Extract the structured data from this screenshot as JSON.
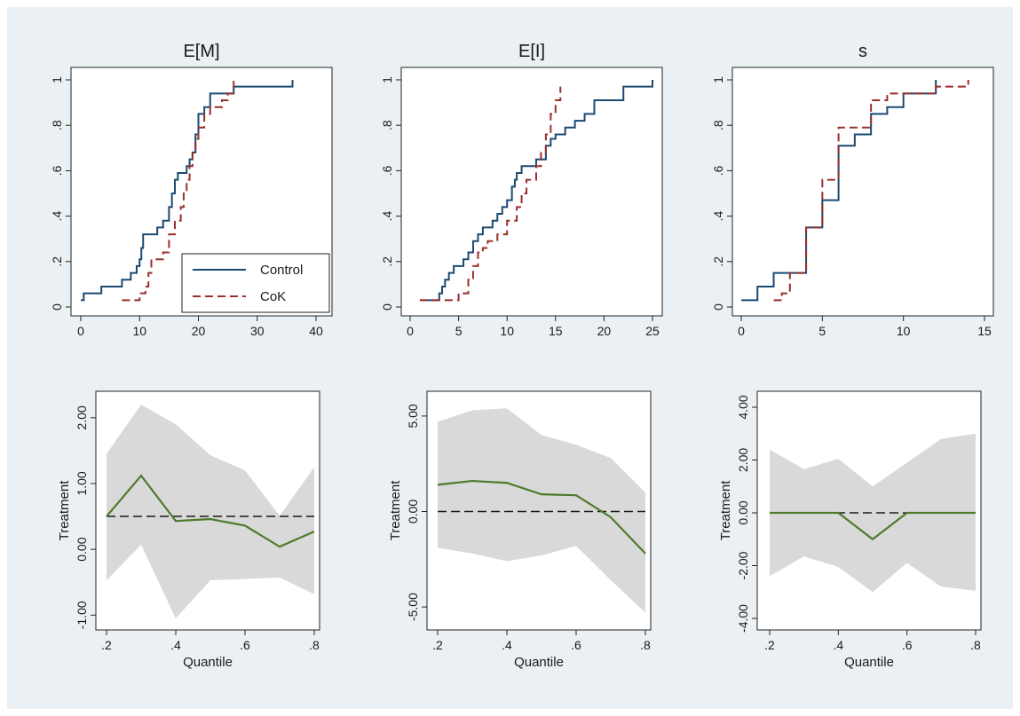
{
  "colors": {
    "outer_background": "#eaf0f3",
    "plot_background": "#ffffff",
    "control_line": "#1b4a72",
    "cok_line": "#9a2f2b",
    "treatment_line": "#4f7a2b",
    "band_fill": "#d9d9d9",
    "reference_line": "#1a1a1a"
  },
  "chart_data": [
    {
      "type": "line",
      "subtype": "step-cdf",
      "title": "E[M]",
      "xlim": [
        0,
        40
      ],
      "ylim": [
        0,
        1
      ],
      "xticks": [
        0,
        10,
        20,
        30,
        40
      ],
      "xtick_labels": [
        "0",
        "10",
        "20",
        "30",
        "40"
      ],
      "yticks": [
        0,
        0.2,
        0.4,
        0.6,
        0.8,
        1
      ],
      "ytick_labels": [
        "0",
        ".2",
        ".4",
        ".6",
        ".8",
        "1"
      ],
      "legend": {
        "placement": "bottom-right",
        "entries": [
          "Control",
          "CoK"
        ]
      },
      "series": [
        {
          "name": "Control",
          "style": "solid",
          "x": [
            0,
            0.5,
            3.5,
            7,
            8.5,
            9.5,
            10,
            10.3,
            10.6,
            11,
            13,
            14,
            15,
            15.5,
            16,
            16.5,
            18,
            18.5,
            19,
            19.5,
            20,
            21,
            22,
            23,
            26,
            28,
            36
          ],
          "y": [
            0.03,
            0.06,
            0.09,
            0.12,
            0.15,
            0.18,
            0.21,
            0.26,
            0.32,
            0.32,
            0.35,
            0.38,
            0.44,
            0.5,
            0.56,
            0.59,
            0.62,
            0.65,
            0.68,
            0.76,
            0.85,
            0.88,
            0.94,
            0.94,
            0.97,
            0.97,
            1.0
          ]
        },
        {
          "name": "CoK",
          "style": "dashed",
          "x": [
            7,
            10,
            11,
            11.5,
            12,
            14,
            15,
            16,
            17,
            17.5,
            18,
            18.5,
            19,
            19.5,
            20,
            21,
            22,
            24,
            25,
            26
          ],
          "y": [
            0.03,
            0.06,
            0.09,
            0.15,
            0.21,
            0.24,
            0.32,
            0.38,
            0.44,
            0.5,
            0.56,
            0.62,
            0.68,
            0.74,
            0.79,
            0.85,
            0.88,
            0.91,
            0.94,
            1.0
          ]
        }
      ]
    },
    {
      "type": "line",
      "subtype": "step-cdf",
      "title": "E[I]",
      "xlim": [
        0,
        25
      ],
      "ylim": [
        0,
        1
      ],
      "xticks": [
        0,
        5,
        10,
        15,
        20,
        25
      ],
      "xtick_labels": [
        "0",
        "5",
        "10",
        "15",
        "20",
        "25"
      ],
      "yticks": [
        0,
        0.2,
        0.4,
        0.6,
        0.8,
        1
      ],
      "ytick_labels": [
        "0",
        ".2",
        ".4",
        ".6",
        ".8",
        "1"
      ],
      "series": [
        {
          "name": "Control",
          "style": "solid",
          "x": [
            1,
            3,
            3.3,
            3.6,
            4,
            4.5,
            5.5,
            6,
            6.5,
            7,
            7.5,
            8,
            8.5,
            9,
            9.5,
            10,
            10.5,
            10.8,
            11,
            11.5,
            13,
            14,
            14.5,
            15,
            16,
            17,
            18,
            19,
            22,
            25
          ],
          "y": [
            0.03,
            0.06,
            0.09,
            0.12,
            0.15,
            0.18,
            0.21,
            0.24,
            0.29,
            0.32,
            0.35,
            0.35,
            0.38,
            0.41,
            0.44,
            0.47,
            0.53,
            0.56,
            0.59,
            0.62,
            0.65,
            0.71,
            0.74,
            0.76,
            0.79,
            0.82,
            0.85,
            0.91,
            0.97,
            1.0
          ]
        },
        {
          "name": "CoK",
          "style": "dashed",
          "x": [
            1,
            3,
            5,
            6,
            6.5,
            7,
            7.5,
            8,
            9,
            10,
            11,
            11.5,
            12,
            13,
            13.5,
            14,
            14.5,
            15,
            15.5
          ],
          "y": [
            0.03,
            0.03,
            0.06,
            0.12,
            0.18,
            0.24,
            0.26,
            0.29,
            0.32,
            0.38,
            0.44,
            0.5,
            0.56,
            0.62,
            0.68,
            0.76,
            0.85,
            0.91,
            0.97
          ]
        }
      ]
    },
    {
      "type": "line",
      "subtype": "step-cdf",
      "title": "s",
      "xlim": [
        0,
        15
      ],
      "ylim": [
        0,
        1
      ],
      "xticks": [
        0,
        5,
        10,
        15
      ],
      "xtick_labels": [
        "0",
        "5",
        "10",
        "15"
      ],
      "yticks": [
        0,
        0.2,
        0.4,
        0.6,
        0.8,
        1
      ],
      "ytick_labels": [
        "0",
        ".2",
        ".4",
        ".6",
        ".8",
        "1"
      ],
      "series": [
        {
          "name": "Control",
          "style": "solid",
          "x": [
            0,
            1,
            2,
            4,
            5,
            6,
            7,
            8,
            9,
            10,
            11,
            12
          ],
          "y": [
            0.03,
            0.09,
            0.15,
            0.35,
            0.47,
            0.71,
            0.76,
            0.85,
            0.88,
            0.94,
            0.94,
            1.0
          ]
        },
        {
          "name": "CoK",
          "style": "dashed",
          "x": [
            2,
            2.5,
            3,
            4,
            5,
            6,
            7,
            8,
            9,
            10,
            11,
            12,
            13,
            14
          ],
          "y": [
            0.03,
            0.06,
            0.15,
            0.35,
            0.56,
            0.79,
            0.79,
            0.91,
            0.94,
            0.94,
            0.94,
            0.97,
            0.97,
            1.0
          ]
        }
      ]
    },
    {
      "type": "line",
      "subtype": "quantile-treatment-effect",
      "xlabel": "Quantile",
      "ylabel": "Treatment",
      "xlim": [
        0.2,
        0.8
      ],
      "ylim": [
        -1.05,
        2.2
      ],
      "xticks": [
        0.2,
        0.4,
        0.6,
        0.8
      ],
      "xtick_labels": [
        ".2",
        ".4",
        ".6",
        ".8"
      ],
      "yticks": [
        -1,
        0,
        1,
        2
      ],
      "ytick_labels": [
        "-1.00",
        "0.00",
        "1.00",
        "2.00"
      ],
      "reference_y": 0.5,
      "x": [
        0.2,
        0.3,
        0.4,
        0.5,
        0.6,
        0.7,
        0.8
      ],
      "estimate": [
        0.5,
        1.12,
        0.43,
        0.46,
        0.36,
        0.04,
        0.27
      ],
      "ci_upper": [
        1.45,
        2.2,
        1.9,
        1.43,
        1.2,
        0.51,
        1.25
      ],
      "ci_lower": [
        -0.47,
        0.07,
        -1.05,
        -0.47,
        -0.45,
        -0.43,
        -0.68
      ]
    },
    {
      "type": "line",
      "subtype": "quantile-treatment-effect",
      "xlabel": "Quantile",
      "ylabel": "Treatment",
      "xlim": [
        0.2,
        0.8
      ],
      "ylim": [
        -5.6,
        5.6
      ],
      "xticks": [
        0.2,
        0.4,
        0.6,
        0.8
      ],
      "xtick_labels": [
        ".2",
        ".4",
        ".6",
        ".8"
      ],
      "yticks": [
        -5,
        0,
        5
      ],
      "ytick_labels": [
        "-5.00",
        "0.00",
        "5.00"
      ],
      "reference_y": 0,
      "x": [
        0.2,
        0.3,
        0.4,
        0.5,
        0.6,
        0.7,
        0.8
      ],
      "estimate": [
        1.4,
        1.6,
        1.5,
        0.9,
        0.85,
        -0.3,
        -2.2
      ],
      "ci_upper": [
        4.7,
        5.3,
        5.4,
        4.0,
        3.5,
        2.8,
        1.0
      ],
      "ci_lower": [
        -1.9,
        -2.2,
        -2.6,
        -2.3,
        -1.8,
        -3.6,
        -5.3
      ]
    },
    {
      "type": "line",
      "subtype": "quantile-treatment-effect",
      "xlabel": "Quantile",
      "ylabel": "Treatment",
      "xlim": [
        0.2,
        0.8
      ],
      "ylim": [
        -4.0,
        4.1
      ],
      "xticks": [
        0.2,
        0.4,
        0.6,
        0.8
      ],
      "xtick_labels": [
        ".2",
        ".4",
        ".6",
        ".8"
      ],
      "yticks": [
        -4,
        -2,
        0,
        2,
        4
      ],
      "ytick_labels": [
        "-4.00",
        "-2.00",
        "0.00",
        "2.00",
        "4.00"
      ],
      "reference_y": 0,
      "x": [
        0.2,
        0.3,
        0.4,
        0.5,
        0.6,
        0.7,
        0.8
      ],
      "estimate": [
        0,
        0,
        0,
        -1.0,
        0,
        0,
        0
      ],
      "ci_upper": [
        2.4,
        1.65,
        2.05,
        1.0,
        1.9,
        2.8,
        3.0
      ],
      "ci_lower": [
        -2.4,
        -1.65,
        -2.05,
        -3.0,
        -1.9,
        -2.8,
        -2.95
      ]
    }
  ]
}
